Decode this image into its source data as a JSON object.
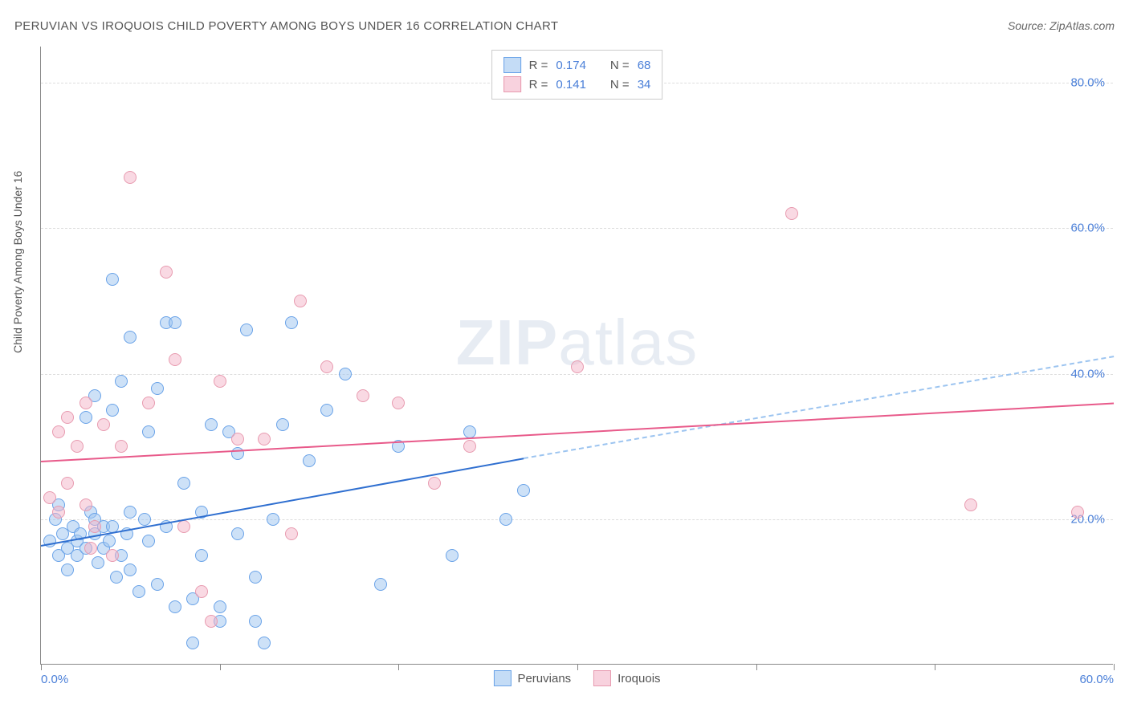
{
  "title": "PERUVIAN VS IROQUOIS CHILD POVERTY AMONG BOYS UNDER 16 CORRELATION CHART",
  "source": "Source: ZipAtlas.com",
  "ylabel": "Child Poverty Among Boys Under 16",
  "watermark_a": "ZIP",
  "watermark_b": "atlas",
  "chart": {
    "type": "scatter",
    "xlim": [
      0,
      60
    ],
    "ylim": [
      0,
      85
    ],
    "x_ticks": [
      0,
      10,
      20,
      30,
      40,
      50,
      60
    ],
    "x_tick_labels": [
      "0.0%",
      "",
      "",
      "",
      "",
      "",
      "60.0%"
    ],
    "y_gridlines": [
      20,
      40,
      60,
      80
    ],
    "y_tick_labels": [
      "20.0%",
      "40.0%",
      "60.0%",
      "80.0%"
    ],
    "background_color": "#ffffff",
    "grid_color": "#dddddd",
    "axis_color": "#888888",
    "text_color": "#555555",
    "value_color": "#4a7fd8",
    "marker_radius": 8,
    "series": [
      {
        "name": "Peruvians",
        "color_fill": "rgba(156,196,240,0.5)",
        "color_stroke": "#6aa3e8",
        "line_color": "#2f6fd0",
        "R": "0.174",
        "N": "68",
        "trend_solid": {
          "x1": 0,
          "y1": 16.5,
          "x2": 27,
          "y2": 28.5
        },
        "trend_dashed": {
          "x1": 27,
          "y1": 28.5,
          "x2": 60,
          "y2": 42.5
        },
        "points": [
          [
            0.5,
            17
          ],
          [
            0.8,
            20
          ],
          [
            1,
            15
          ],
          [
            1,
            22
          ],
          [
            1.2,
            18
          ],
          [
            1.5,
            13
          ],
          [
            1.5,
            16
          ],
          [
            1.8,
            19
          ],
          [
            2,
            17
          ],
          [
            2,
            15
          ],
          [
            2.2,
            18
          ],
          [
            2.5,
            34
          ],
          [
            2.5,
            16
          ],
          [
            2.8,
            21
          ],
          [
            3,
            18
          ],
          [
            3,
            20
          ],
          [
            3,
            37
          ],
          [
            3.2,
            14
          ],
          [
            3.5,
            16
          ],
          [
            3.5,
            19
          ],
          [
            3.8,
            17
          ],
          [
            4,
            35
          ],
          [
            4,
            19
          ],
          [
            4,
            53
          ],
          [
            4.2,
            12
          ],
          [
            4.5,
            39
          ],
          [
            4.5,
            15
          ],
          [
            4.8,
            18
          ],
          [
            5,
            13
          ],
          [
            5,
            21
          ],
          [
            5,
            45
          ],
          [
            5.5,
            10
          ],
          [
            5.8,
            20
          ],
          [
            6,
            17
          ],
          [
            6,
            32
          ],
          [
            6.5,
            38
          ],
          [
            6.5,
            11
          ],
          [
            7,
            47
          ],
          [
            7,
            19
          ],
          [
            7.5,
            47
          ],
          [
            7.5,
            8
          ],
          [
            8,
            25
          ],
          [
            8.5,
            9
          ],
          [
            8.5,
            3
          ],
          [
            9,
            15
          ],
          [
            9,
            21
          ],
          [
            9.5,
            33
          ],
          [
            10,
            8
          ],
          [
            10,
            6
          ],
          [
            10.5,
            32
          ],
          [
            11,
            29
          ],
          [
            11,
            18
          ],
          [
            11.5,
            46
          ],
          [
            12,
            12
          ],
          [
            12,
            6
          ],
          [
            12.5,
            3
          ],
          [
            13,
            20
          ],
          [
            13.5,
            33
          ],
          [
            14,
            47
          ],
          [
            15,
            28
          ],
          [
            16,
            35
          ],
          [
            17,
            40
          ],
          [
            19,
            11
          ],
          [
            20,
            30
          ],
          [
            23,
            15
          ],
          [
            24,
            32
          ],
          [
            26,
            20
          ],
          [
            27,
            24
          ]
        ]
      },
      {
        "name": "Iroquois",
        "color_fill": "rgba(244,180,200,0.5)",
        "color_stroke": "#e89bb0",
        "line_color": "#e85a8a",
        "R": "0.141",
        "N": "34",
        "trend_solid": {
          "x1": 0,
          "y1": 28,
          "x2": 60,
          "y2": 36
        },
        "points": [
          [
            0.5,
            23
          ],
          [
            1,
            21
          ],
          [
            1,
            32
          ],
          [
            1.5,
            34
          ],
          [
            1.5,
            25
          ],
          [
            2,
            30
          ],
          [
            2.5,
            22
          ],
          [
            2.5,
            36
          ],
          [
            2.8,
            16
          ],
          [
            3,
            19
          ],
          [
            3.5,
            33
          ],
          [
            4,
            15
          ],
          [
            4.5,
            30
          ],
          [
            5,
            67
          ],
          [
            6,
            36
          ],
          [
            7,
            54
          ],
          [
            7.5,
            42
          ],
          [
            8,
            19
          ],
          [
            9,
            10
          ],
          [
            9.5,
            6
          ],
          [
            10,
            39
          ],
          [
            11,
            31
          ],
          [
            12.5,
            31
          ],
          [
            14,
            18
          ],
          [
            14.5,
            50
          ],
          [
            16,
            41
          ],
          [
            18,
            37
          ],
          [
            20,
            36
          ],
          [
            22,
            25
          ],
          [
            24,
            30
          ],
          [
            30,
            41
          ],
          [
            42,
            62
          ],
          [
            52,
            22
          ],
          [
            58,
            21
          ]
        ]
      }
    ]
  },
  "legend_top": [
    {
      "swatch": "blue",
      "r_label": "R =",
      "r_val": "0.174",
      "n_label": "N =",
      "n_val": "68"
    },
    {
      "swatch": "pink",
      "r_label": "R =",
      "r_val": "0.141",
      "n_label": "N =",
      "n_val": "34"
    }
  ],
  "legend_bottom": [
    {
      "swatch": "blue",
      "label": "Peruvians"
    },
    {
      "swatch": "pink",
      "label": "Iroquois"
    }
  ]
}
